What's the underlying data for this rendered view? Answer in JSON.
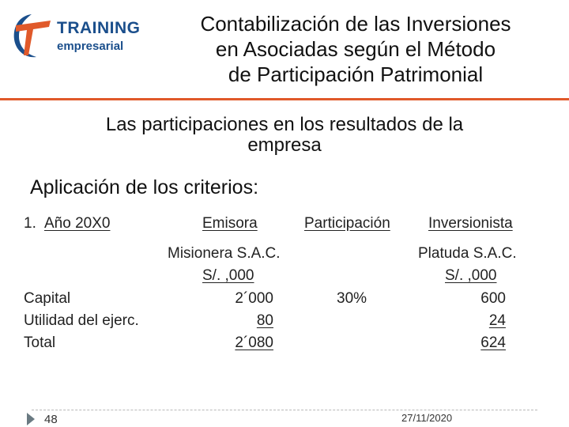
{
  "logo": {
    "line1": "TRAINING",
    "line2": "empresarial"
  },
  "title": {
    "line1": "Contabilización de las Inversiones",
    "line2": "en Asociadas según el Método",
    "line3": "de Participación Patrimonial"
  },
  "subtitle": {
    "line1": "Las participaciones en los resultados de la",
    "line2": "empresa"
  },
  "criteria_heading": "Aplicación de los criterios:",
  "table": {
    "item_number": "1.",
    "year_label": "Año 20X0",
    "headers": {
      "issuer": "Emisora",
      "participation": "Participación",
      "investor": "Inversionista"
    },
    "issuer_name": "Misionera S.A.C.",
    "investor_name": "Platuda S.A.C.",
    "issuer_unit": "S/. ,000",
    "investor_unit": "S/. ,000",
    "rows": [
      {
        "label": "Capital",
        "issuer": "2´000",
        "participation": "30%",
        "investor": "600"
      },
      {
        "label": "Utilidad del ejerc.",
        "issuer": "80",
        "participation": "",
        "investor": "24"
      },
      {
        "label": "Total",
        "issuer": "2´080",
        "participation": "",
        "investor": "624"
      }
    ]
  },
  "footer": {
    "page_number": "48",
    "date": "27/11/2020"
  },
  "colors": {
    "accent": "#e0592a",
    "brand_blue": "#1b4f8c"
  }
}
